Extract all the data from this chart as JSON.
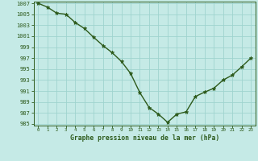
{
  "x": [
    0,
    1,
    2,
    3,
    4,
    5,
    6,
    7,
    8,
    9,
    10,
    11,
    12,
    13,
    14,
    15,
    16,
    17,
    18,
    19,
    20,
    21,
    22,
    23
  ],
  "y": [
    1007.0,
    1006.3,
    1005.2,
    1005.0,
    1003.5,
    1002.4,
    1000.8,
    999.3,
    998.0,
    996.4,
    994.2,
    990.7,
    988.0,
    986.8,
    985.3,
    986.8,
    987.2,
    990.0,
    990.8,
    991.5,
    993.0,
    993.9,
    995.4,
    997.0
  ],
  "line_color": "#2d5a1b",
  "marker_color": "#2d5a1b",
  "bg_color": "#c5eae6",
  "grid_color": "#9fd4cf",
  "title": "Graphe pression niveau de la mer (hPa)",
  "xlabel_ticks": [
    0,
    1,
    2,
    3,
    4,
    5,
    6,
    7,
    8,
    9,
    10,
    11,
    12,
    13,
    14,
    15,
    16,
    17,
    18,
    19,
    20,
    21,
    22,
    23
  ],
  "ytick_min": 985,
  "ytick_max": 1007,
  "ytick_step": 2
}
